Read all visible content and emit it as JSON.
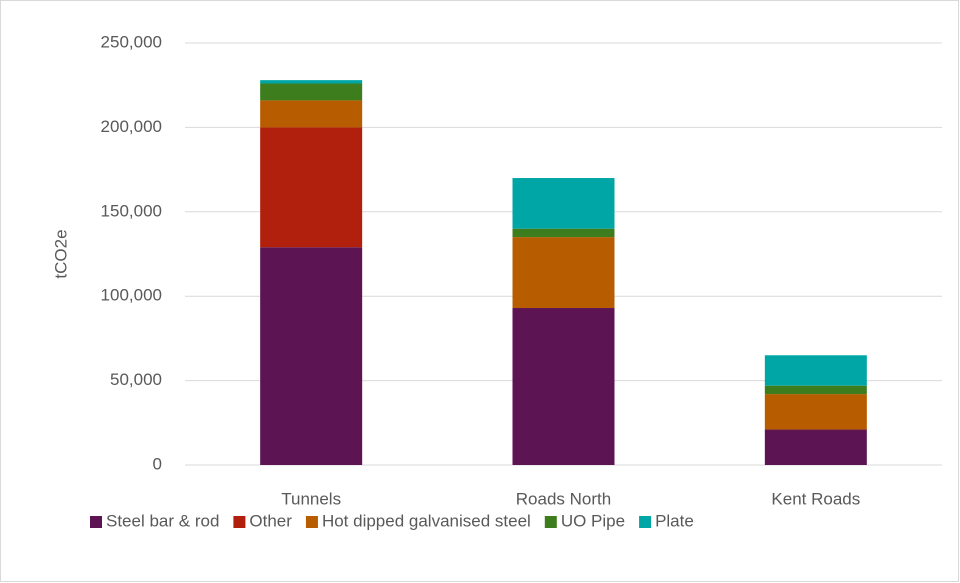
{
  "chart_data": {
    "type": "bar",
    "stacked": true,
    "y_label": "tCO2e",
    "categories": [
      "Tunnels",
      "Roads North",
      "Kent Roads"
    ],
    "series": [
      {
        "name": "Steel bar & rod",
        "color": "#5c1452",
        "values": [
          129000,
          93000,
          21000
        ]
      },
      {
        "name": "Other",
        "color": "#b0200c",
        "values": [
          71000,
          0,
          0
        ]
      },
      {
        "name": "Hot dipped galvanised steel",
        "color": "#b85c00",
        "values": [
          16000,
          42000,
          21000
        ]
      },
      {
        "name": "UO Pipe",
        "color": "#3e7d1e",
        "values": [
          10000,
          5000,
          5000
        ]
      },
      {
        "name": "Plate",
        "color": "#00a6a6",
        "values": [
          2000,
          30000,
          18000
        ]
      }
    ],
    "ylim": [
      0,
      250000
    ],
    "yticks": [
      0,
      {
        "value": 50000,
        "label": "50,000"
      },
      {
        "value": 100000,
        "label": "100,000"
      },
      {
        "value": 150000,
        "label": "150,000"
      },
      {
        "value": 200000,
        "label": "200,000"
      },
      {
        "value": 250000,
        "label": "250,000"
      }
    ],
    "grid": true,
    "legend": "bottom"
  }
}
